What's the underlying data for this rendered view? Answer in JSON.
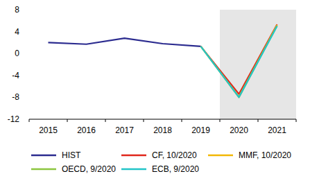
{
  "chart_data": {
    "type": "line",
    "categories": [
      "2015",
      "2016",
      "2017",
      "2018",
      "2019",
      "2020",
      "2021"
    ],
    "series": [
      {
        "name": "HIST",
        "color": "#2b2b8f",
        "values": [
          2.0,
          1.7,
          2.8,
          1.8,
          1.3,
          null,
          null
        ]
      },
      {
        "name": "CF, 10/2020",
        "color": "#e0261b",
        "values": [
          null,
          null,
          null,
          null,
          1.3,
          -7.4,
          5.3
        ]
      },
      {
        "name": "MMF, 10/2020",
        "color": "#f2b705",
        "values": [
          null,
          null,
          null,
          null,
          1.3,
          -8.0,
          5.2
        ]
      },
      {
        "name": "OECD, 9/2020",
        "color": "#8cc63f",
        "values": [
          null,
          null,
          null,
          null,
          1.3,
          -7.9,
          5.1
        ]
      },
      {
        "name": "ECB, 9/2020",
        "color": "#22c4c8",
        "values": [
          null,
          null,
          null,
          null,
          1.3,
          -8.0,
          5.0
        ]
      }
    ],
    "ylim": [
      -12,
      8
    ],
    "yticks": [
      -12,
      -8,
      -4,
      0,
      4,
      8
    ],
    "grid": false,
    "legend": "bottom"
  }
}
